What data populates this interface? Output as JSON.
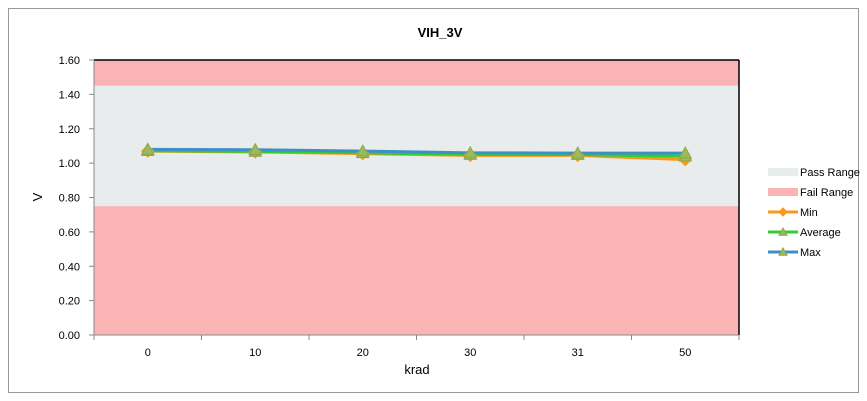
{
  "chart_data": {
    "type": "line",
    "title": "VIH_3V",
    "xlabel": "krad",
    "ylabel": "V",
    "categories": [
      "0",
      "10",
      "20",
      "30",
      "31",
      "50"
    ],
    "ylim": [
      0,
      1.6
    ],
    "yticks": [
      "0.00",
      "0.20",
      "0.40",
      "0.60",
      "0.80",
      "1.00",
      "1.20",
      "1.40",
      "1.60"
    ],
    "bands": [
      {
        "name": "Fail Range",
        "from": 0.0,
        "to": 0.75,
        "color": "#fbb4b4"
      },
      {
        "name": "Pass Range",
        "from": 0.75,
        "to": 1.45,
        "color": "#e8ecec"
      },
      {
        "name": "Fail Range",
        "from": 1.45,
        "to": 1.6,
        "color": "#fbb4b4"
      }
    ],
    "series": [
      {
        "name": "Min",
        "color": "#f79a1b",
        "marker": "diamond",
        "values": [
          1.07,
          1.065,
          1.055,
          1.045,
          1.045,
          1.02
        ]
      },
      {
        "name": "Average",
        "color": "#33cc33",
        "marker": "triangle",
        "values": [
          1.072,
          1.068,
          1.06,
          1.05,
          1.05,
          1.04
        ]
      },
      {
        "name": "Max",
        "color": "#3d8fc7",
        "marker": "triangle",
        "values": [
          1.08,
          1.078,
          1.07,
          1.06,
          1.058,
          1.058
        ]
      }
    ],
    "legend": {
      "position": "right",
      "entries": [
        {
          "label": "Pass Range",
          "kind": "band",
          "color": "#e8ecec"
        },
        {
          "label": "Fail Range",
          "kind": "band",
          "color": "#fbb4b4"
        },
        {
          "label": "Min",
          "kind": "line",
          "color": "#f79a1b",
          "marker": "diamond"
        },
        {
          "label": "Average",
          "kind": "line",
          "color": "#33cc33",
          "marker": "triangle"
        },
        {
          "label": "Max",
          "kind": "line",
          "color": "#3d8fc7",
          "marker": "triangle"
        }
      ]
    },
    "marker_fill": "#9bbb59",
    "grid": false
  }
}
